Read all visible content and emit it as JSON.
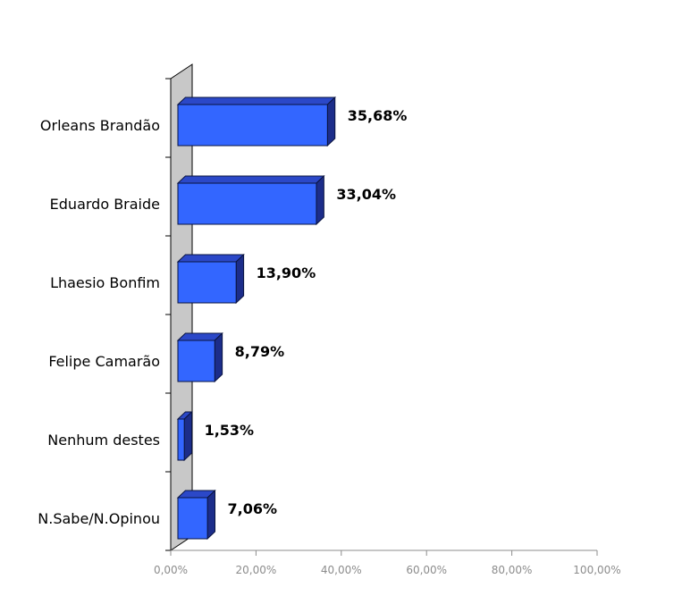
{
  "chart_data": {
    "type": "bar",
    "orientation": "horizontal",
    "style": "3d",
    "title": "",
    "xlabel": "",
    "ylabel": "",
    "categories": [
      "Orleans Brandão",
      "Eduardo Braide",
      "Lhaesio Bonfim",
      "Felipe Camarão",
      "Nenhum destes",
      "N.Sabe/N.Opinou"
    ],
    "values": [
      35.68,
      33.04,
      13.9,
      8.79,
      1.53,
      7.06
    ],
    "value_labels": [
      "35,68%",
      "33,04%",
      "13,90%",
      "8,79%",
      "1,53%",
      "7,06%"
    ],
    "xlim": [
      0,
      100
    ],
    "x_ticks": [
      0,
      20,
      40,
      60,
      80,
      100
    ],
    "x_tick_labels": [
      "0,00%",
      "20,00%",
      "40,00%",
      "60,00%",
      "80,00%",
      "100,00%"
    ],
    "grid": false,
    "legend": "none",
    "colors": {
      "bar_front": "#3366ff",
      "bar_top": "#2b48c8",
      "bar_side": "#1c2d8a",
      "bar_edge": "#0a1440",
      "back_wall": "#c8c8c8",
      "axis": "#8c8c8c"
    }
  }
}
